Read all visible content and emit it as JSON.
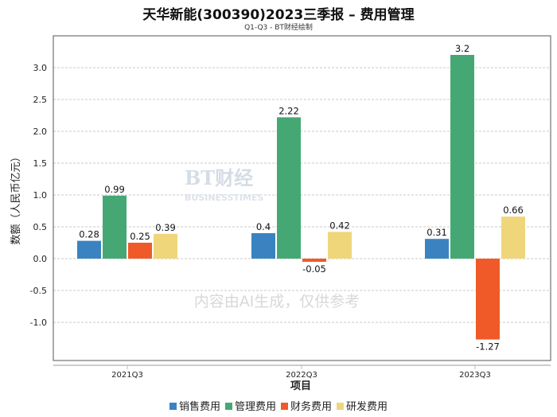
{
  "chart_data": {
    "type": "bar",
    "title": "天华新能(300390)2023三季报 – 费用管理",
    "subtitle": "Q1-Q3 - BT财经绘制",
    "xlabel": "项目",
    "ylabel": "数额（人民币亿元）",
    "ylim": [
      -1.5,
      3.5
    ],
    "yticks": [
      -1.0,
      -0.5,
      0.0,
      0.5,
      1.0,
      1.5,
      2.0,
      2.5,
      3.0
    ],
    "grid": true,
    "legend_position": "bottom",
    "categories": [
      "2021Q3",
      "2022Q3",
      "2023Q3"
    ],
    "series": [
      {
        "name": "销售费用",
        "color": "#3a83c0",
        "values": [
          0.28,
          0.4,
          0.31
        ]
      },
      {
        "name": "管理费用",
        "color": "#45a874",
        "values": [
          0.99,
          2.22,
          3.2
        ]
      },
      {
        "name": "财务费用",
        "color": "#f05a28",
        "values": [
          0.25,
          -0.05,
          -1.27
        ]
      },
      {
        "name": "研发费用",
        "color": "#efd67a",
        "values": [
          0.39,
          0.42,
          0.66
        ]
      }
    ]
  },
  "watermark": {
    "logo": "BT财经",
    "logo_sub": "BUSINESSTIMES",
    "notice": "内容由AI生成，仅供参考"
  }
}
